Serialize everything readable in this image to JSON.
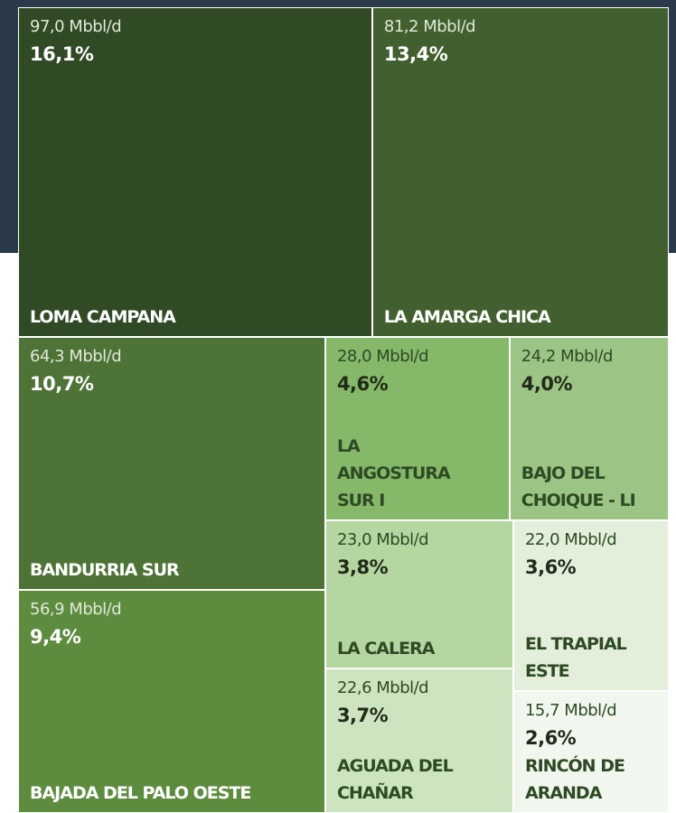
{
  "chart_data": {
    "type": "treemap",
    "categories": [
      "LOMA CAMPANA",
      "LA AMARGA CHICA",
      "BANDURRIA SUR",
      "BAJADA DEL PALO OESTE",
      "LA ANGOSTURA SUR I",
      "BAJO DEL CHOIQUE - LI",
      "LA CALERA",
      "AGUADA DEL CHAÑAR",
      "EL TRAPIAL ESTE",
      "RINCÓN DE ARANDA"
    ],
    "values": [
      97.0,
      81.2,
      64.3,
      56.9,
      28.0,
      24.2,
      23.0,
      22.6,
      22.0,
      15.7
    ],
    "value_labels": [
      "97,0 Mbbl/d",
      "81,2 Mbbl/d",
      "64,3 Mbbl/d",
      "56,9 Mbbl/d",
      "28,0 Mbbl/d",
      "24,2 Mbbl/d",
      "23,0 Mbbl/d",
      "22,6 Mbbl/d",
      "22,0 Mbbl/d",
      "15,7 Mbbl/d"
    ],
    "percents": [
      16.1,
      13.4,
      10.7,
      9.4,
      4.6,
      4.0,
      3.8,
      3.7,
      3.6,
      2.6
    ],
    "percent_labels": [
      "16,1%",
      "13,4%",
      "10,7%",
      "9,4%",
      "4,6%",
      "4,0%",
      "3,8%",
      "3,7%",
      "3,6%",
      "2,6%"
    ],
    "colors": [
      "#2f4a25",
      "#42602f",
      "#4e7336",
      "#5e8c3f",
      "#86b86a",
      "#9cc484",
      "#b5d6a1",
      "#cde4c0",
      "#e3efdb",
      "#f1f7ee"
    ]
  }
}
